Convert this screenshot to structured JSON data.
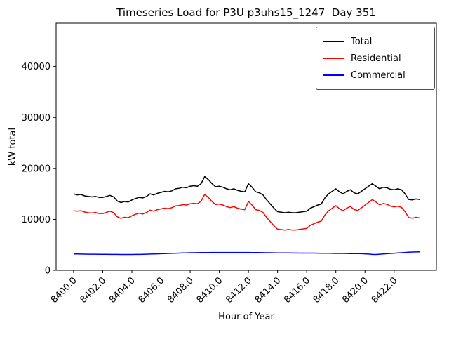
{
  "chart_data": {
    "type": "line",
    "title": "Timeseries Load for P3U p3uhs15_1247  Day 351",
    "xlabel": "Hour of Year",
    "ylabel": "kW total",
    "xlim": [
      8398.8,
      8424.9
    ],
    "ylim": [
      0,
      48500
    ],
    "grid": false,
    "legend_position": "upper right",
    "x_ticks": [
      8400,
      8402,
      8404,
      8406,
      8408,
      8410,
      8412,
      8414,
      8416,
      8418,
      8420,
      8422
    ],
    "x_tick_labels": [
      "8400.0",
      "8402.0",
      "8404.0",
      "8406.0",
      "8408.0",
      "8410.0",
      "8412.0",
      "8414.0",
      "8416.0",
      "8418.0",
      "8420.0",
      "8422.0"
    ],
    "y_ticks": [
      0,
      10000,
      20000,
      30000,
      40000
    ],
    "y_tick_labels": [
      "0",
      "10000",
      "20000",
      "30000",
      "40000"
    ],
    "x": [
      8400.0,
      8400.25,
      8400.5,
      8400.75,
      8401.0,
      8401.25,
      8401.5,
      8401.75,
      8402.0,
      8402.25,
      8402.5,
      8402.75,
      8403.0,
      8403.25,
      8403.5,
      8403.75,
      8404.0,
      8404.25,
      8404.5,
      8404.75,
      8405.0,
      8405.25,
      8405.5,
      8405.75,
      8406.0,
      8406.25,
      8406.5,
      8406.75,
      8407.0,
      8407.25,
      8407.5,
      8407.75,
      8408.0,
      8408.25,
      8408.5,
      8408.75,
      8409.0,
      8409.25,
      8409.5,
      8409.75,
      8410.0,
      8410.25,
      8410.5,
      8410.75,
      8411.0,
      8411.25,
      8411.5,
      8411.75,
      8412.0,
      8412.25,
      8412.5,
      8412.75,
      8413.0,
      8413.25,
      8413.5,
      8413.75,
      8414.0,
      8414.25,
      8414.5,
      8414.75,
      8415.0,
      8415.25,
      8415.5,
      8415.75,
      8416.0,
      8416.25,
      8416.5,
      8416.75,
      8417.0,
      8417.25,
      8417.5,
      8417.75,
      8418.0,
      8418.25,
      8418.5,
      8418.75,
      8419.0,
      8419.25,
      8419.5,
      8419.75,
      8420.0,
      8420.25,
      8420.5,
      8420.75,
      8421.0,
      8421.25,
      8421.5,
      8421.75,
      8422.0,
      8422.25,
      8422.5,
      8422.75,
      8423.0,
      8423.25,
      8423.5,
      8423.75
    ],
    "series": [
      {
        "name": "Total",
        "color": "#000000",
        "values": [
          15000,
          14800,
          14900,
          14600,
          14500,
          14400,
          14500,
          14300,
          14300,
          14500,
          14700,
          14400,
          13600,
          13300,
          13500,
          13400,
          13800,
          14100,
          14300,
          14200,
          14500,
          15000,
          14800,
          15100,
          15300,
          15500,
          15400,
          15600,
          16000,
          16100,
          16300,
          16200,
          16500,
          16600,
          16500,
          17000,
          18400,
          17800,
          17000,
          16400,
          16500,
          16300,
          16000,
          15800,
          16000,
          15700,
          15500,
          15400,
          17000,
          16300,
          15400,
          15200,
          14800,
          13800,
          13000,
          12200,
          11500,
          11400,
          11300,
          11400,
          11300,
          11300,
          11400,
          11500,
          11600,
          12200,
          12500,
          12800,
          13000,
          14200,
          15000,
          15500,
          16000,
          15400,
          15000,
          15500,
          15800,
          15200,
          15000,
          15500,
          16000,
          16500,
          17000,
          16500,
          16000,
          16300,
          16200,
          15900,
          15800,
          16000,
          15800,
          15000,
          13900,
          13800,
          14000,
          13900
        ]
      },
      {
        "name": "Residential",
        "color": "#ff0000",
        "values": [
          11700,
          11600,
          11700,
          11450,
          11300,
          11250,
          11350,
          11150,
          11150,
          11350,
          11600,
          11300,
          10500,
          10200,
          10400,
          10300,
          10700,
          11000,
          11200,
          11050,
          11350,
          11800,
          11600,
          11900,
          12050,
          12200,
          12100,
          12300,
          12650,
          12700,
          12900,
          12800,
          13050,
          13150,
          13050,
          13550,
          14900,
          14300,
          13500,
          12900,
          13000,
          12800,
          12500,
          12300,
          12500,
          12200,
          12000,
          11900,
          13500,
          12800,
          11900,
          11750,
          11350,
          10350,
          9550,
          8750,
          8080,
          7990,
          7900,
          8000,
          7910,
          7910,
          8020,
          8120,
          8220,
          8830,
          9130,
          9440,
          9650,
          10860,
          11670,
          12180,
          12690,
          12100,
          11700,
          12210,
          12520,
          11930,
          11740,
          12250,
          12780,
          13320,
          13880,
          13400,
          12850,
          13100,
          12950,
          12600,
          12450,
          12600,
          12350,
          11500,
          10350,
          10220,
          10400,
          10280
        ]
      },
      {
        "name": "Commercial",
        "color": "#0000ff",
        "values": [
          3200,
          3200,
          3180,
          3170,
          3160,
          3150,
          3150,
          3140,
          3130,
          3130,
          3120,
          3120,
          3110,
          3100,
          3100,
          3100,
          3100,
          3110,
          3120,
          3130,
          3150,
          3180,
          3200,
          3220,
          3250,
          3280,
          3300,
          3320,
          3350,
          3380,
          3400,
          3420,
          3440,
          3450,
          3460,
          3470,
          3480,
          3490,
          3500,
          3500,
          3500,
          3500,
          3500,
          3500,
          3500,
          3500,
          3500,
          3500,
          3500,
          3490,
          3480,
          3470,
          3460,
          3450,
          3440,
          3430,
          3420,
          3410,
          3400,
          3400,
          3390,
          3390,
          3380,
          3380,
          3380,
          3370,
          3370,
          3360,
          3350,
          3340,
          3330,
          3320,
          3310,
          3300,
          3300,
          3290,
          3280,
          3270,
          3260,
          3250,
          3220,
          3180,
          3120,
          3100,
          3150,
          3200,
          3250,
          3300,
          3350,
          3400,
          3450,
          3500,
          3550,
          3580,
          3600,
          3620
        ]
      }
    ]
  }
}
